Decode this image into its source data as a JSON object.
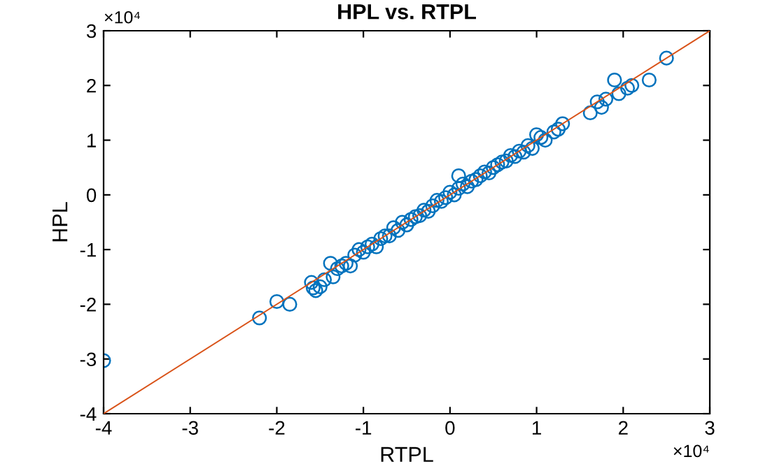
{
  "chart_data": {
    "type": "scatter",
    "title": "HPL vs. RTPL",
    "xlabel": "RTPL",
    "ylabel": "HPL",
    "annotations": [
      "×10⁴",
      "×10⁴"
    ],
    "xlim": [
      -4,
      3
    ],
    "ylim": [
      -4,
      3
    ],
    "xticks": [
      -4,
      -3,
      -2,
      -1,
      0,
      1,
      2,
      3
    ],
    "yticks": [
      -4,
      -3,
      -2,
      -1,
      0,
      1,
      2,
      3
    ],
    "grid": false,
    "marker": "circle",
    "series": [
      {
        "color": "#0072bd",
        "x": [
          -4.0,
          -2.2,
          -2.0,
          -1.85,
          -1.6,
          -1.58,
          -1.55,
          -1.5,
          -1.45,
          -1.38,
          -1.35,
          -1.3,
          -1.25,
          -1.2,
          -1.15,
          -1.1,
          -1.05,
          -1.0,
          -0.95,
          -0.9,
          -0.85,
          -0.8,
          -0.75,
          -0.7,
          -0.65,
          -0.6,
          -0.55,
          -0.5,
          -0.45,
          -0.4,
          -0.35,
          -0.3,
          -0.25,
          -0.2,
          -0.15,
          -0.1,
          -0.05,
          0.0,
          0.05,
          0.1,
          0.1,
          0.15,
          0.2,
          0.25,
          0.3,
          0.35,
          0.4,
          0.45,
          0.5,
          0.55,
          0.6,
          0.65,
          0.7,
          0.75,
          0.8,
          0.85,
          0.9,
          0.95,
          1.0,
          1.05,
          1.1,
          1.2,
          1.25,
          1.3,
          1.62,
          1.7,
          1.75,
          1.8,
          1.9,
          1.95,
          2.05,
          2.1,
          2.3,
          2.5
        ],
        "values": [
          -3.03,
          -2.25,
          -1.95,
          -2.0,
          -1.6,
          -1.7,
          -1.75,
          -1.68,
          -1.55,
          -1.25,
          -1.5,
          -1.35,
          -1.3,
          -1.25,
          -1.3,
          -1.1,
          -1.0,
          -1.05,
          -0.95,
          -0.9,
          -0.95,
          -0.8,
          -0.75,
          -0.75,
          -0.6,
          -0.65,
          -0.5,
          -0.55,
          -0.45,
          -0.4,
          -0.38,
          -0.28,
          -0.3,
          -0.2,
          -0.1,
          -0.12,
          -0.05,
          0.05,
          0.0,
          0.35,
          0.12,
          0.2,
          0.15,
          0.25,
          0.28,
          0.35,
          0.42,
          0.4,
          0.5,
          0.55,
          0.6,
          0.62,
          0.72,
          0.7,
          0.8,
          0.78,
          0.9,
          0.85,
          1.1,
          1.05,
          1.0,
          1.15,
          1.2,
          1.3,
          1.5,
          1.7,
          1.6,
          1.75,
          2.1,
          1.85,
          1.95,
          2.0,
          2.1,
          2.5
        ]
      },
      {
        "type": "line",
        "color": "#d95319",
        "line_style": "solid",
        "marker": "none",
        "x": [
          -4,
          3
        ],
        "values": [
          -4,
          3
        ]
      }
    ]
  }
}
